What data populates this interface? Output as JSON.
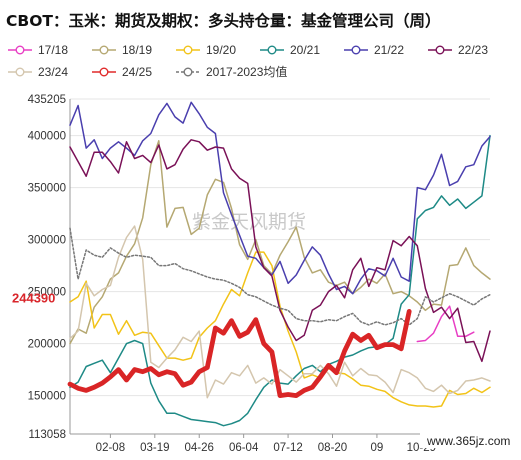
{
  "chart_data": {
    "type": "line",
    "title": "CBOT：玉米：期货及期权：多头持仓量：基金管理公司（周）",
    "xlabel": "",
    "ylabel": "",
    "ylim": [
      113058,
      435205
    ],
    "y_ticks": [
      435205,
      400000,
      350000,
      300000,
      250000,
      200000,
      150000,
      113058
    ],
    "x_ticks": [
      "02-08",
      "03-19",
      "04-26",
      "06-04",
      "07-12",
      "08-20",
      "09",
      "10-29"
    ],
    "x_range_weeks": [
      0,
      52
    ],
    "x_tick_positions": [
      5,
      10.5,
      16,
      21.5,
      27,
      32.5,
      38,
      43.5
    ],
    "highlight": {
      "value": 244390,
      "label": "244390",
      "color": "#d9262b"
    },
    "grid": "horizontal",
    "legend": "top",
    "watermark": "紫金天风期货",
    "watermark2": "www.365jz.com",
    "series": [
      {
        "name": "17/18",
        "color": "#e83ec4",
        "width": 1.5,
        "dash": false,
        "marker": "o",
        "x": [
          43,
          44,
          45,
          46,
          47,
          48,
          49,
          50
        ],
        "y": [
          202000,
          203000,
          210000,
          226000,
          236000,
          207000,
          207000,
          211000
        ]
      },
      {
        "name": "18/19",
        "color": "#b5a872",
        "width": 1.5,
        "dash": false,
        "marker": "o",
        "x": [
          0,
          1,
          2,
          3,
          4,
          5,
          6,
          7,
          8,
          9,
          10,
          11,
          12,
          13,
          14,
          15,
          16,
          17,
          18,
          19,
          20,
          21,
          22,
          23,
          24,
          25,
          26,
          27,
          28,
          29,
          30,
          31,
          32,
          33,
          34,
          35,
          36,
          37,
          38,
          39,
          40,
          41,
          42,
          43,
          44,
          45,
          46,
          47,
          48,
          49,
          50,
          51,
          52
        ],
        "y": [
          200000,
          214000,
          210000,
          235000,
          245000,
          262000,
          268000,
          284000,
          296000,
          321000,
          372000,
          395000,
          312000,
          330000,
          331000,
          305000,
          311000,
          343000,
          358000,
          355000,
          330000,
          295000,
          281000,
          300000,
          275000,
          267000,
          285000,
          298000,
          312000,
          283000,
          268000,
          271000,
          259000,
          256000,
          259000,
          248000,
          254000,
          262000,
          258000,
          267000,
          248000,
          250000,
          246000,
          240000,
          232000,
          238000,
          237000,
          275000,
          276000,
          292000,
          275000,
          268000,
          262000
        ]
      },
      {
        "name": "19/20",
        "color": "#f2c318",
        "width": 1.5,
        "dash": false,
        "marker": "o",
        "x": [
          0,
          1,
          2,
          3,
          4,
          5,
          6,
          7,
          8,
          9,
          10,
          11,
          12,
          13,
          14,
          15,
          16,
          17,
          18,
          19,
          20,
          21,
          22,
          23,
          24,
          25,
          26,
          27,
          28,
          29,
          30,
          31,
          32,
          33,
          34,
          35,
          36,
          37,
          38,
          39,
          40,
          41,
          42,
          43,
          44,
          45,
          46,
          47,
          48,
          49,
          50,
          51,
          52
        ],
        "y": [
          240000,
          245000,
          260000,
          215000,
          228000,
          228000,
          209000,
          222000,
          208000,
          211000,
          210000,
          198000,
          186000,
          186000,
          184000,
          186000,
          206000,
          215000,
          222000,
          238000,
          252000,
          246000,
          268000,
          288000,
          288000,
          275000,
          236000,
          212000,
          192000,
          167000,
          170000,
          167000,
          176000,
          172000,
          171000,
          166000,
          160000,
          159000,
          156000,
          154000,
          148000,
          144000,
          141000,
          140000,
          140000,
          139000,
          140000,
          155000,
          151000,
          152000,
          157000,
          153000,
          158000
        ]
      },
      {
        "name": "20/21",
        "color": "#1e8a86",
        "width": 1.5,
        "dash": false,
        "marker": "o",
        "x": [
          0,
          1,
          2,
          3,
          4,
          5,
          6,
          7,
          8,
          9,
          10,
          11,
          12,
          13,
          14,
          15,
          16,
          17,
          18,
          19,
          20,
          21,
          22,
          23,
          24,
          25,
          26,
          27,
          28,
          29,
          30,
          31,
          32,
          33,
          34,
          35,
          36,
          37,
          38,
          39,
          40,
          41,
          42,
          43,
          44,
          45,
          46,
          47,
          48,
          49,
          50,
          51,
          52
        ],
        "y": [
          158000,
          163000,
          178000,
          181000,
          184000,
          172000,
          186000,
          200000,
          203000,
          200000,
          162000,
          145000,
          133000,
          133000,
          130000,
          127000,
          126000,
          125000,
          124000,
          121000,
          123000,
          126000,
          133000,
          146000,
          158000,
          165000,
          162000,
          161000,
          169000,
          176000,
          179000,
          173000,
          180000,
          183000,
          187000,
          189000,
          193000,
          196000,
          197000,
          199000,
          205000,
          238000,
          247000,
          320000,
          328000,
          331000,
          342000,
          333000,
          339000,
          330000,
          336000,
          342000,
          400000
        ]
      },
      {
        "name": "21/22",
        "color": "#4a3fae",
        "width": 1.5,
        "dash": false,
        "marker": "o",
        "x": [
          0,
          1,
          2,
          3,
          4,
          5,
          6,
          7,
          8,
          9,
          10,
          11,
          12,
          13,
          14,
          15,
          16,
          17,
          18,
          19,
          20,
          21,
          22,
          23,
          24,
          25,
          26,
          27,
          28,
          29,
          30,
          31,
          32,
          33,
          34,
          35,
          36,
          37,
          38,
          39,
          40,
          41,
          42,
          43,
          44,
          45,
          46,
          47,
          48,
          49,
          50,
          51,
          52
        ],
        "y": [
          410000,
          429000,
          388000,
          396000,
          378000,
          388000,
          394000,
          388000,
          381000,
          395000,
          402000,
          420000,
          431000,
          418000,
          412000,
          432000,
          421000,
          408000,
          402000,
          345000,
          324000,
          304000,
          284000,
          282000,
          273000,
          266000,
          279000,
          258000,
          266000,
          280000,
          293000,
          285000,
          267000,
          252000,
          255000,
          248000,
          262000,
          272000,
          270000,
          265000,
          282000,
          264000,
          260000,
          350000,
          348000,
          362000,
          382000,
          352000,
          356000,
          370000,
          372000,
          390000,
          399000
        ]
      },
      {
        "name": "22/23",
        "color": "#7a1157",
        "width": 1.5,
        "dash": false,
        "marker": "o",
        "x": [
          0,
          1,
          2,
          3,
          4,
          5,
          6,
          7,
          8,
          9,
          10,
          11,
          12,
          13,
          14,
          15,
          16,
          17,
          18,
          19,
          20,
          21,
          22,
          23,
          24,
          25,
          26,
          27,
          28,
          29,
          30,
          31,
          32,
          33,
          34,
          35,
          36,
          37,
          38,
          39,
          40,
          41,
          42,
          43,
          44,
          45,
          46,
          47,
          48,
          49,
          50,
          51,
          52
        ],
        "y": [
          389000,
          375000,
          361000,
          384000,
          384000,
          375000,
          364000,
          394000,
          378000,
          381000,
          374000,
          391000,
          368000,
          372000,
          387000,
          396000,
          394000,
          386000,
          389000,
          388000,
          368000,
          359000,
          354000,
          293000,
          273000,
          265000,
          232000,
          216000,
          203000,
          208000,
          232000,
          237000,
          250000,
          256000,
          244000,
          271000,
          282000,
          255000,
          273000,
          271000,
          299000,
          294000,
          303000,
          294000,
          253000,
          230000,
          235000,
          224000,
          234000,
          201000,
          202000,
          183000,
          212000
        ]
      },
      {
        "name": "23/24",
        "color": "#d4c6ae",
        "width": 1.5,
        "dash": false,
        "marker": "o",
        "x": [
          0,
          1,
          2,
          3,
          4,
          5,
          6,
          7,
          8,
          9,
          10,
          11,
          12,
          13,
          14,
          15,
          16,
          17,
          18,
          19,
          20,
          21,
          22,
          23,
          24,
          25,
          26,
          27,
          28,
          29,
          30,
          31,
          32,
          33,
          34,
          35,
          36,
          37,
          38,
          39,
          40,
          41,
          42,
          43,
          44,
          45,
          46,
          47,
          48,
          49,
          50,
          51,
          52
        ],
        "y": [
          205000,
          212000,
          258000,
          246000,
          252000,
          256000,
          283000,
          302000,
          313000,
          281000,
          182000,
          177000,
          186000,
          194000,
          206000,
          202000,
          212000,
          148000,
          165000,
          161000,
          172000,
          169000,
          179000,
          162000,
          167000,
          161000,
          175000,
          169000,
          163000,
          171000,
          171000,
          179000,
          171000,
          159000,
          182000,
          169000,
          176000,
          170000,
          169000,
          163000,
          153000,
          175000,
          172000,
          167000,
          157000,
          154000,
          160000,
          152000,
          155000,
          164000,
          165000,
          167000,
          164000
        ]
      },
      {
        "name": "24/25",
        "color": "#e02a2a",
        "width": 1.5,
        "dash": false,
        "marker": "o",
        "x": [],
        "y": []
      },
      {
        "name": "2017-2023均值",
        "color": "#777777",
        "width": 1.5,
        "dash": true,
        "marker": "o",
        "x": [
          0,
          1,
          2,
          3,
          4,
          5,
          6,
          7,
          8,
          9,
          10,
          11,
          12,
          13,
          14,
          15,
          16,
          17,
          18,
          19,
          20,
          21,
          22,
          23,
          24,
          25,
          26,
          27,
          28,
          29,
          30,
          31,
          32,
          33,
          34,
          35,
          36,
          37,
          38,
          39,
          40,
          41,
          42,
          43,
          44,
          45,
          46,
          47,
          48,
          49,
          50,
          51,
          52
        ],
        "y": [
          311000,
          262000,
          290000,
          285000,
          283000,
          292000,
          287000,
          283000,
          285000,
          284000,
          283000,
          275000,
          275000,
          277000,
          272000,
          270000,
          267000,
          264000,
          262000,
          261000,
          258000,
          254000,
          247000,
          245000,
          241000,
          237000,
          234000,
          232000,
          224000,
          222000,
          222000,
          221000,
          223000,
          222000,
          226000,
          229000,
          221000,
          218000,
          221000,
          218000,
          220000,
          224000,
          218000,
          224000,
          245000,
          240000,
          244000,
          248000,
          245000,
          241000,
          237000,
          243000,
          247000
        ]
      },
      {
        "name": "",
        "color": "#d92526",
        "width": 4.8,
        "dash": false,
        "marker": "none",
        "x": [
          0,
          1,
          2,
          3,
          4,
          5,
          6,
          7,
          8,
          9,
          10,
          11,
          12,
          13,
          14,
          15,
          16,
          17,
          18,
          19,
          20,
          21,
          22,
          23,
          24,
          25,
          26,
          27,
          28,
          29,
          30,
          31,
          32,
          33,
          34,
          35,
          36,
          37,
          38,
          39,
          40,
          41,
          42
        ],
        "y": [
          161000,
          157000,
          155000,
          158000,
          162000,
          168000,
          175000,
          165000,
          175000,
          173000,
          176000,
          170000,
          173000,
          171000,
          160000,
          163000,
          173000,
          177000,
          215000,
          210000,
          222000,
          207000,
          211000,
          223000,
          200000,
          192000,
          150000,
          151000,
          150000,
          155000,
          158000,
          168000,
          179000,
          172000,
          193000,
          209000,
          203000,
          208000,
          196000,
          199000,
          199000,
          195000,
          231000
        ]
      }
    ]
  }
}
